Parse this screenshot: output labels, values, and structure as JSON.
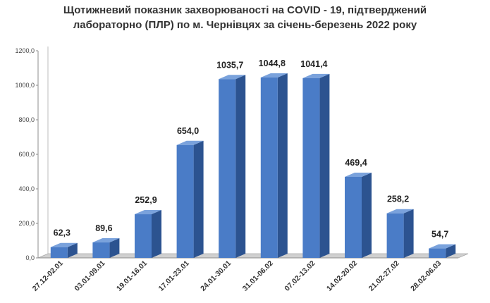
{
  "chart_data": {
    "type": "bar",
    "title_line1": "Щотижневий показник захворюваності на COVID - 19, підтверджений",
    "title_line2": "лабораторно (ПЛР) по м. Чернівцях за січень-березень 2022 року",
    "categories": [
      "27.12-02.01",
      "03.01-09.01",
      "19.01-16.01",
      "17.01-23.01",
      "24.01-30.01",
      "31.01-06.02",
      "07.02-13.02",
      "14.02-20.02",
      "21.02-27.02",
      "28.02-06.03"
    ],
    "values": [
      62.3,
      89.6,
      252.9,
      654.0,
      1035.7,
      1044.8,
      1041.4,
      469.4,
      258.2,
      54.7
    ],
    "value_labels": [
      "62,3",
      "89,6",
      "252,9",
      "654,0",
      "1035,7",
      "1044,8",
      "1041,4",
      "469,4",
      "258,2",
      "54,7"
    ],
    "y_ticks": [
      "0,0",
      "200,0",
      "400,0",
      "600,0",
      "800,0",
      "1000,0",
      "1200,0"
    ],
    "ylim": [
      0,
      1200
    ],
    "grid": false,
    "legend": "none",
    "colors": {
      "bar_front": "#4a7cc7",
      "bar_side": "#2c5390",
      "bar_top": "#7aa2dc",
      "floor": "#d0d0d0"
    }
  }
}
